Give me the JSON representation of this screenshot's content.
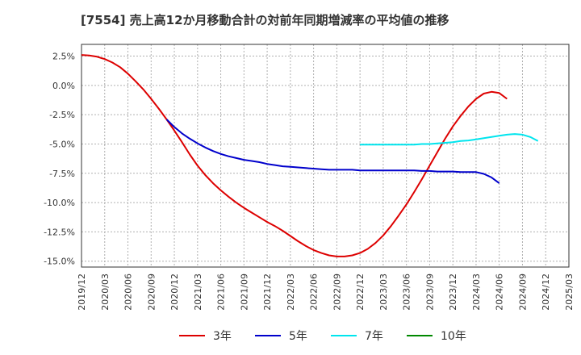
{
  "chart_data": {
    "type": "line",
    "title": "[7554]  売上高12か月移動合計の対前年同期増減率の平均値の推移",
    "xlabel": "",
    "ylabel": "",
    "ylim": [
      -15.5,
      3.5
    ],
    "yticks": [
      "2.5%",
      "0.0%",
      "-2.5%",
      "-5.0%",
      "-7.5%",
      "-10.0%",
      "-12.5%",
      "-15.0%"
    ],
    "ytick_values": [
      2.5,
      0,
      -2.5,
      -5,
      -7.5,
      -10,
      -12.5,
      -15
    ],
    "xticks": [
      "2019/12",
      "2020/03",
      "2020/06",
      "2020/09",
      "2020/12",
      "2021/03",
      "2021/06",
      "2021/09",
      "2021/12",
      "2022/03",
      "2022/06",
      "2022/09",
      "2022/12",
      "2023/03",
      "2023/06",
      "2023/09",
      "2023/12",
      "2024/03",
      "2024/06",
      "2024/09",
      "2024/12",
      "2025/03"
    ],
    "grid": true,
    "legend_position": "bottom",
    "series": [
      {
        "name": "3年",
        "color": "#dd0000",
        "points": [
          [
            "2019/12",
            2.6
          ],
          [
            "2020/01",
            2.55
          ],
          [
            "2020/02",
            2.45
          ],
          [
            "2020/03",
            2.25
          ],
          [
            "2020/04",
            1.95
          ],
          [
            "2020/05",
            1.55
          ],
          [
            "2020/06",
            1.0
          ],
          [
            "2020/07",
            0.35
          ],
          [
            "2020/08",
            -0.35
          ],
          [
            "2020/09",
            -1.15
          ],
          [
            "2020/10",
            -2.0
          ],
          [
            "2020/11",
            -2.9
          ],
          [
            "2020/12",
            -3.85
          ],
          [
            "2021/01",
            -4.85
          ],
          [
            "2021/02",
            -5.9
          ],
          [
            "2021/03",
            -6.85
          ],
          [
            "2021/04",
            -7.65
          ],
          [
            "2021/05",
            -8.35
          ],
          [
            "2021/06",
            -8.95
          ],
          [
            "2021/07",
            -9.5
          ],
          [
            "2021/08",
            -10.0
          ],
          [
            "2021/09",
            -10.45
          ],
          [
            "2021/10",
            -10.85
          ],
          [
            "2021/11",
            -11.25
          ],
          [
            "2021/12",
            -11.65
          ],
          [
            "2022/01",
            -12.0
          ],
          [
            "2022/02",
            -12.4
          ],
          [
            "2022/03",
            -12.85
          ],
          [
            "2022/04",
            -13.3
          ],
          [
            "2022/05",
            -13.7
          ],
          [
            "2022/06",
            -14.05
          ],
          [
            "2022/07",
            -14.3
          ],
          [
            "2022/08",
            -14.5
          ],
          [
            "2022/09",
            -14.6
          ],
          [
            "2022/10",
            -14.6
          ],
          [
            "2022/11",
            -14.5
          ],
          [
            "2022/12",
            -14.3
          ],
          [
            "2023/01",
            -13.95
          ],
          [
            "2023/02",
            -13.45
          ],
          [
            "2023/03",
            -12.8
          ],
          [
            "2023/04",
            -12.0
          ],
          [
            "2023/05",
            -11.1
          ],
          [
            "2023/06",
            -10.15
          ],
          [
            "2023/07",
            -9.1
          ],
          [
            "2023/08",
            -8.0
          ],
          [
            "2023/09",
            -6.85
          ],
          [
            "2023/10",
            -5.7
          ],
          [
            "2023/11",
            -4.55
          ],
          [
            "2023/12",
            -3.5
          ],
          [
            "2024/01",
            -2.6
          ],
          [
            "2024/02",
            -1.8
          ],
          [
            "2024/03",
            -1.15
          ],
          [
            "2024/04",
            -0.7
          ],
          [
            "2024/05",
            -0.55
          ],
          [
            "2024/06",
            -0.65
          ],
          [
            "2024/07",
            -1.15
          ]
        ]
      },
      {
        "name": "5年",
        "color": "#0000cc",
        "points": [
          [
            "2020/11",
            -2.9
          ],
          [
            "2020/12",
            -3.55
          ],
          [
            "2021/01",
            -4.1
          ],
          [
            "2021/02",
            -4.55
          ],
          [
            "2021/03",
            -4.95
          ],
          [
            "2021/04",
            -5.3
          ],
          [
            "2021/05",
            -5.6
          ],
          [
            "2021/06",
            -5.85
          ],
          [
            "2021/07",
            -6.05
          ],
          [
            "2021/08",
            -6.2
          ],
          [
            "2021/09",
            -6.35
          ],
          [
            "2021/10",
            -6.45
          ],
          [
            "2021/11",
            -6.55
          ],
          [
            "2021/12",
            -6.7
          ],
          [
            "2022/01",
            -6.8
          ],
          [
            "2022/02",
            -6.9
          ],
          [
            "2022/03",
            -6.95
          ],
          [
            "2022/04",
            -7.0
          ],
          [
            "2022/05",
            -7.05
          ],
          [
            "2022/06",
            -7.1
          ],
          [
            "2022/07",
            -7.15
          ],
          [
            "2022/08",
            -7.2
          ],
          [
            "2022/09",
            -7.2
          ],
          [
            "2022/10",
            -7.2
          ],
          [
            "2022/11",
            -7.2
          ],
          [
            "2022/12",
            -7.25
          ],
          [
            "2023/01",
            -7.25
          ],
          [
            "2023/02",
            -7.25
          ],
          [
            "2023/03",
            -7.25
          ],
          [
            "2023/04",
            -7.25
          ],
          [
            "2023/05",
            -7.25
          ],
          [
            "2023/06",
            -7.25
          ],
          [
            "2023/07",
            -7.25
          ],
          [
            "2023/08",
            -7.3
          ],
          [
            "2023/09",
            -7.3
          ],
          [
            "2023/10",
            -7.35
          ],
          [
            "2023/11",
            -7.35
          ],
          [
            "2023/12",
            -7.35
          ],
          [
            "2024/01",
            -7.4
          ],
          [
            "2024/02",
            -7.4
          ],
          [
            "2024/03",
            -7.4
          ],
          [
            "2024/04",
            -7.55
          ],
          [
            "2024/05",
            -7.85
          ],
          [
            "2024/06",
            -8.35
          ]
        ]
      },
      {
        "name": "7年",
        "color": "#00e5ee",
        "points": [
          [
            "2022/12",
            -5.05
          ],
          [
            "2023/01",
            -5.05
          ],
          [
            "2023/02",
            -5.05
          ],
          [
            "2023/03",
            -5.05
          ],
          [
            "2023/04",
            -5.05
          ],
          [
            "2023/05",
            -5.05
          ],
          [
            "2023/06",
            -5.05
          ],
          [
            "2023/07",
            -5.05
          ],
          [
            "2023/08",
            -5.0
          ],
          [
            "2023/09",
            -5.0
          ],
          [
            "2023/10",
            -4.95
          ],
          [
            "2023/11",
            -4.9
          ],
          [
            "2023/12",
            -4.85
          ],
          [
            "2024/01",
            -4.75
          ],
          [
            "2024/02",
            -4.7
          ],
          [
            "2024/03",
            -4.6
          ],
          [
            "2024/04",
            -4.5
          ],
          [
            "2024/05",
            -4.4
          ],
          [
            "2024/06",
            -4.3
          ],
          [
            "2024/07",
            -4.2
          ],
          [
            "2024/08",
            -4.15
          ],
          [
            "2024/09",
            -4.2
          ],
          [
            "2024/10",
            -4.4
          ],
          [
            "2024/11",
            -4.75
          ]
        ]
      },
      {
        "name": "10年",
        "color": "#008800",
        "points": []
      }
    ]
  }
}
